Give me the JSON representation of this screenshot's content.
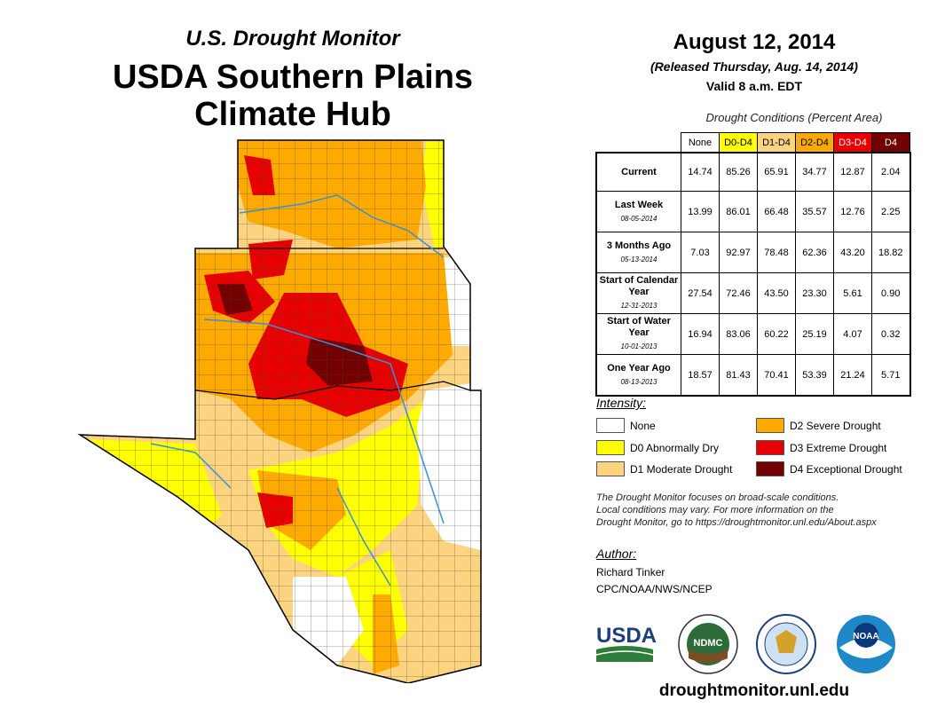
{
  "header": {
    "subtitle": "U.S. Drought Monitor",
    "title_line1": "USDA Southern Plains",
    "title_line2": "Climate Hub"
  },
  "release": {
    "date": "August 12, 2014",
    "released": "(Released Thursday, Aug. 14, 2014)",
    "valid": "Valid 8 a.m. EDT"
  },
  "conditions": {
    "title": "Drought Conditions (Percent Area)",
    "columns": [
      "None",
      "D0-D4",
      "D1-D4",
      "D2-D4",
      "D3-D4",
      "D4"
    ],
    "rows": [
      {
        "label": "Current",
        "date": "",
        "values": [
          "14.74",
          "85.26",
          "65.91",
          "34.77",
          "12.87",
          "2.04"
        ]
      },
      {
        "label": "Last Week",
        "date": "08-05-2014",
        "values": [
          "13.99",
          "86.01",
          "66.48",
          "35.57",
          "12.76",
          "2.25"
        ]
      },
      {
        "label": "3 Months Ago",
        "date": "05-13-2014",
        "values": [
          "7.03",
          "92.97",
          "78.48",
          "62.36",
          "43.20",
          "18.82"
        ]
      },
      {
        "label": "Start of Calendar Year",
        "date": "12-31-2013",
        "values": [
          "27.54",
          "72.46",
          "43.50",
          "23.30",
          "5.61",
          "0.90"
        ]
      },
      {
        "label": "Start of Water Year",
        "date": "10-01-2013",
        "values": [
          "16.94",
          "83.06",
          "60.22",
          "25.19",
          "4.07",
          "0.32"
        ]
      },
      {
        "label": "One Year Ago",
        "date": "08-13-2013",
        "values": [
          "18.57",
          "81.43",
          "70.41",
          "53.39",
          "21.24",
          "5.71"
        ]
      }
    ]
  },
  "legend": {
    "title": "Intensity:",
    "items": [
      {
        "label": "None",
        "color": "#ffffff"
      },
      {
        "label": "D0 Abnormally Dry",
        "color": "#ffff00"
      },
      {
        "label": "D1 Moderate Drought",
        "color": "#fcd37f"
      },
      {
        "label": "D2 Severe Drought",
        "color": "#ffaa00"
      },
      {
        "label": "D3 Extreme Drought",
        "color": "#e60000"
      },
      {
        "label": "D4 Exceptional Drought",
        "color": "#730000"
      }
    ]
  },
  "note": {
    "line1": "The Drought Monitor focuses on broad-scale conditions.",
    "line2": "Local conditions may vary. For more information on the",
    "line3": "Drought Monitor, go to https://droughtmonitor.unl.edu/About.aspx"
  },
  "author": {
    "label": "Author:",
    "name": "Richard Tinker",
    "org": "CPC/NOAA/NWS/NCEP"
  },
  "logos": {
    "usda": "USDA",
    "ndmc": "NDMC",
    "noaa": "NOAA"
  },
  "footer": {
    "url": "droughtmonitor.unl.edu"
  }
}
